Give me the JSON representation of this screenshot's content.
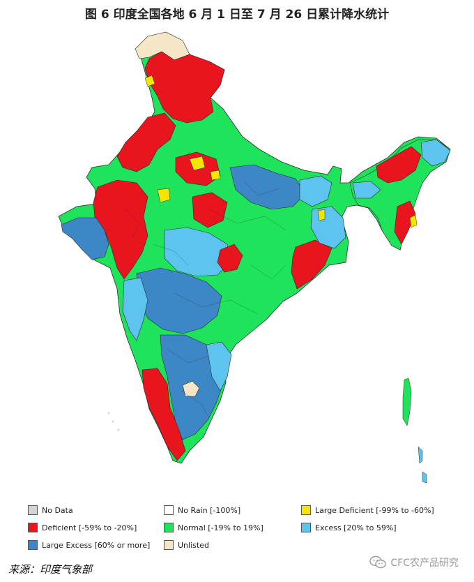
{
  "title": "图 6  印度全国各地 6 月 1 日至 7 月 26 日累计降水统计",
  "legend": [
    {
      "label": "No Data",
      "color": "#d4d4d4"
    },
    {
      "label": "No Rain [-100%]",
      "color": "#ffffff"
    },
    {
      "label": "Large Deficient [-99% to -60%]",
      "color": "#f5e600"
    },
    {
      "label": "Deficient [-59% to -20%]",
      "color": "#e8141e"
    },
    {
      "label": "Normal [-19% to 19%]",
      "color": "#1fe35a"
    },
    {
      "label": "Excess [20% to 59%]",
      "color": "#5cc4ee"
    },
    {
      "label": "Large Excess [60% or more]",
      "color": "#3d87c7"
    },
    {
      "label": "Unlisted",
      "color": "#f5e6c8"
    }
  ],
  "source": "来源：印度气象部",
  "watermark": "CFC农产品研究",
  "colors": {
    "deficient": "#e8141e",
    "normal": "#1fe35a",
    "excess": "#5cc4ee",
    "large_excess": "#3d87c7",
    "large_deficient": "#f5e600",
    "unlisted": "#f5e6c8"
  }
}
